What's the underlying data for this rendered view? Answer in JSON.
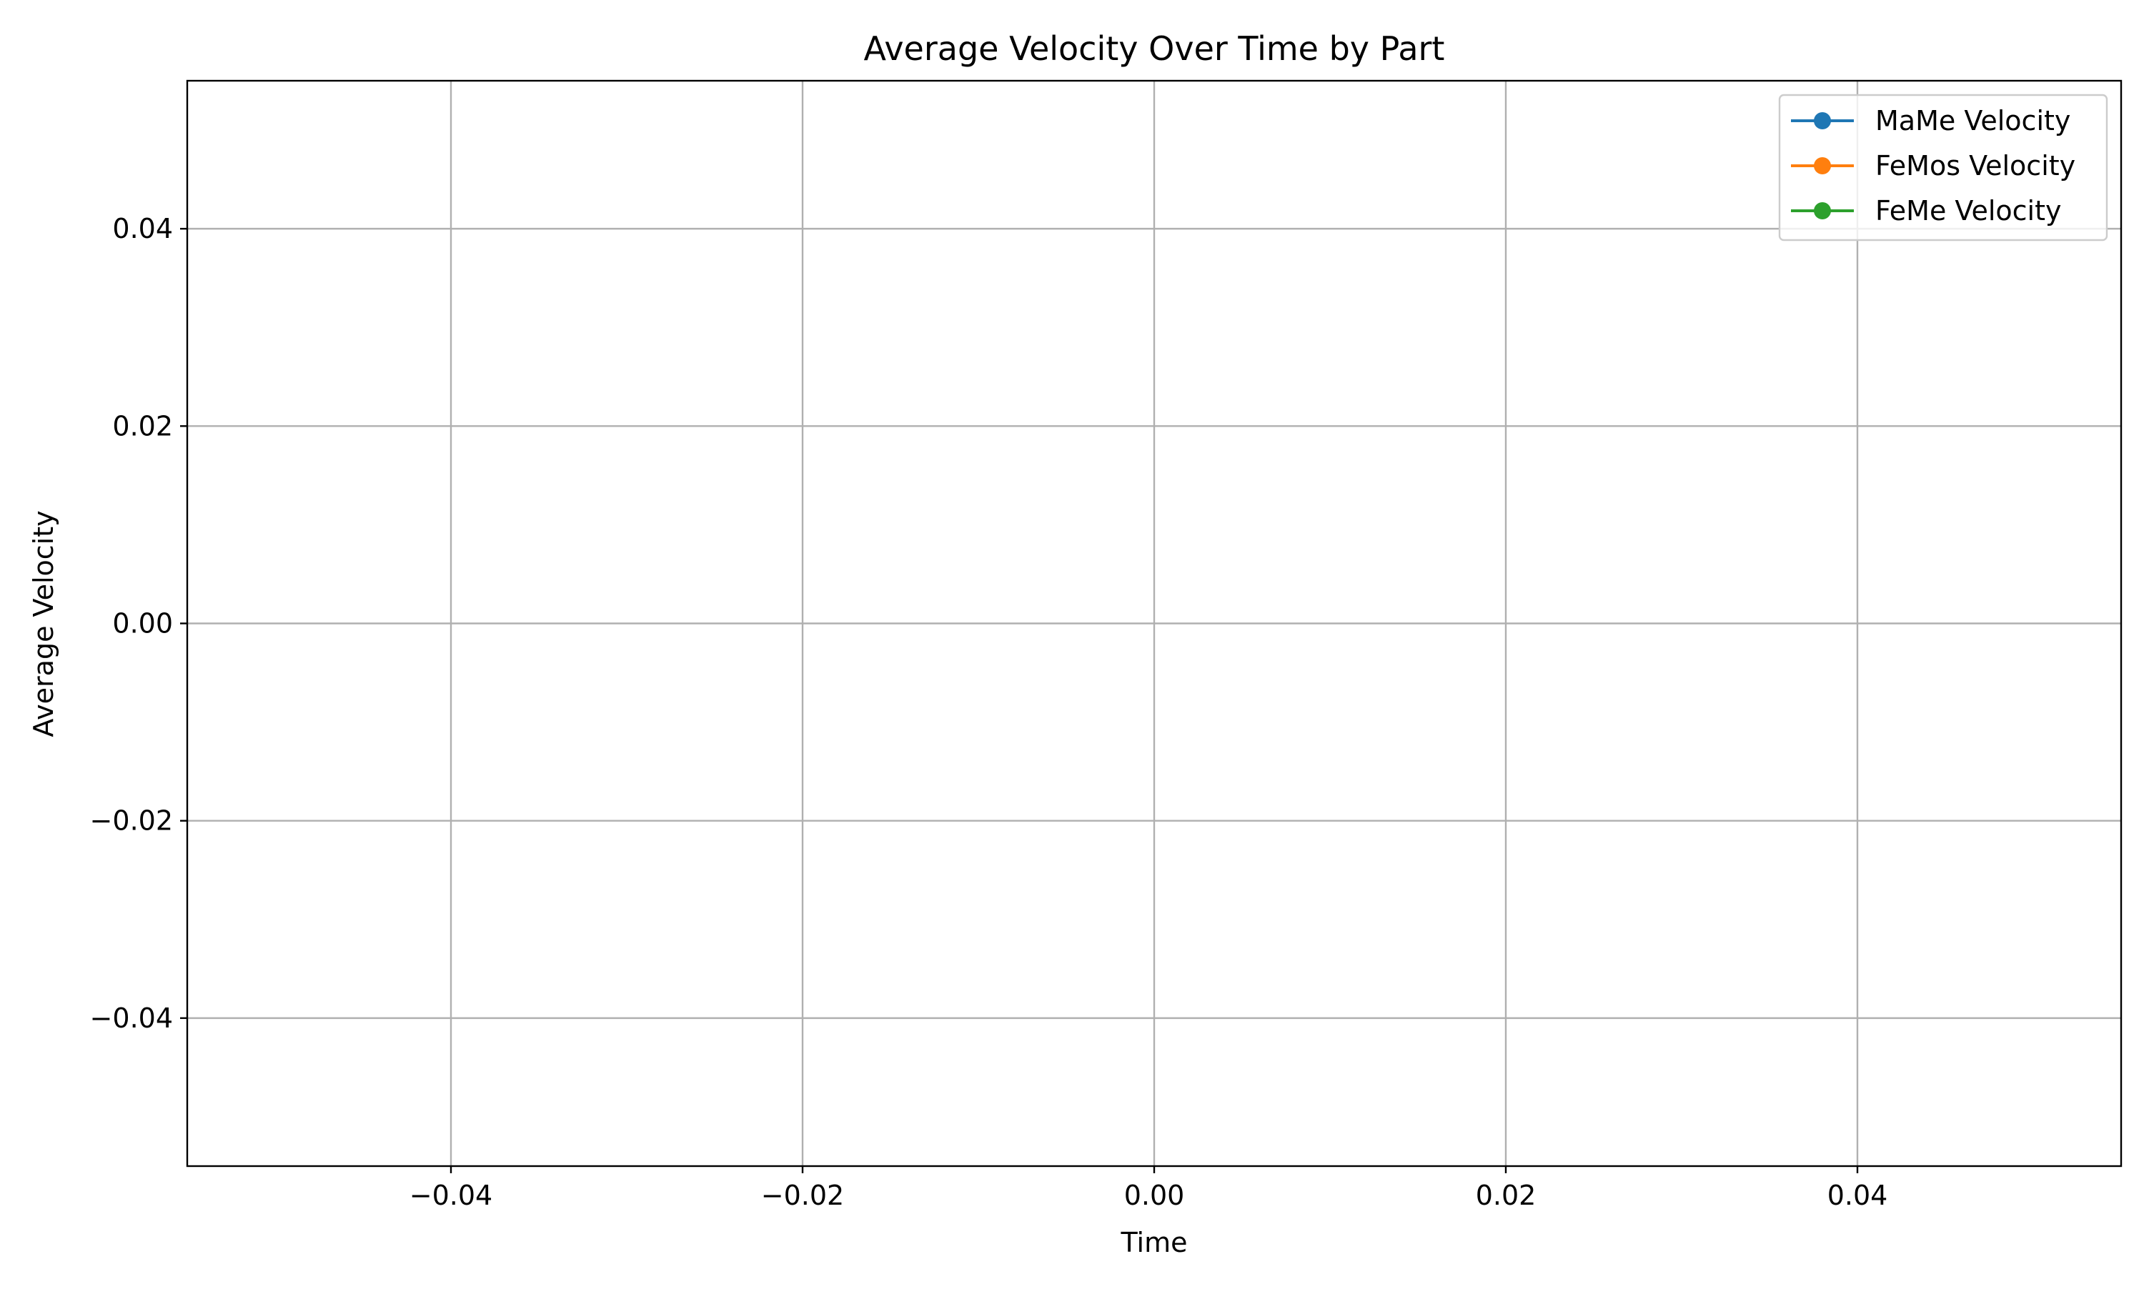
{
  "chart_data": {
    "type": "line",
    "title": "Average Velocity Over Time by Part",
    "xlabel": "Time",
    "ylabel": "Average Velocity",
    "xlim": [
      -0.055,
      0.055
    ],
    "ylim": [
      -0.055,
      0.055
    ],
    "x_ticks": [
      -0.04,
      -0.02,
      0.0,
      0.02,
      0.04
    ],
    "x_tick_labels": [
      "−0.04",
      "−0.02",
      "0.00",
      "0.02",
      "0.04"
    ],
    "y_ticks": [
      -0.04,
      -0.02,
      0.0,
      0.02,
      0.04
    ],
    "y_tick_labels": [
      "−0.04",
      "−0.02",
      "0.00",
      "0.02",
      "0.04"
    ],
    "grid": true,
    "legend_position": "top-right",
    "series": [
      {
        "name": "MaMe Velocity",
        "color": "#1f77b4",
        "marker": "circle",
        "x": [],
        "y": []
      },
      {
        "name": "FeMos Velocity",
        "color": "#ff7f0e",
        "marker": "circle",
        "x": [],
        "y": []
      },
      {
        "name": "FeMe Velocity",
        "color": "#2ca02c",
        "marker": "circle",
        "x": [],
        "y": []
      }
    ]
  }
}
